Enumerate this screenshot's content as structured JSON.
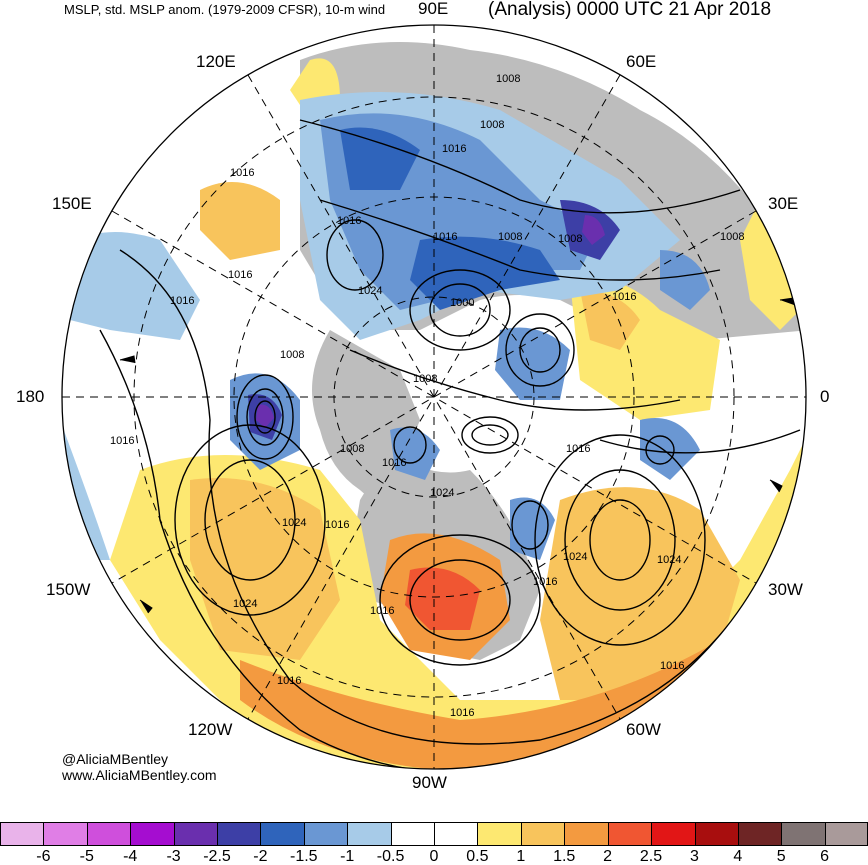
{
  "title": {
    "left": "MSLP, std. MSLP anom. (1979-2009 CFSR), 10-m wind",
    "right": "(Analysis) 0000 UTC 21 Apr 2018"
  },
  "longitude_labels": {
    "lon_90e": "90E",
    "lon_60e": "60E",
    "lon_120e": "120E",
    "lon_30e": "30E",
    "lon_150e": "150E",
    "lon_180": "180",
    "lon_0": "0",
    "lon_150w": "150W",
    "lon_30w": "30W",
    "lon_120w": "120W",
    "lon_60w": "60W",
    "lon_90w": "90W"
  },
  "isobar_labels": [
    "1008",
    "1008",
    "1016",
    "1016",
    "1008",
    "1008",
    "1016",
    "1016",
    "1024",
    "1008",
    "1016",
    "1016",
    "1000",
    "1008",
    "1016",
    "1008",
    "1016",
    "1008",
    "1016",
    "1024",
    "1024",
    "1016",
    "1016",
    "1024",
    "1024",
    "1016",
    "1016",
    "1024",
    "1016",
    "1016",
    "1016"
  ],
  "credits": {
    "handle": "@AliciaMBentley",
    "website": "www.AliciaMBentley.com"
  },
  "colorbar": {
    "colors": [
      "#e9b3ea",
      "#e07ee6",
      "#cf4fdc",
      "#a50dd0",
      "#6a2fae",
      "#3d3fa6",
      "#2f64bb",
      "#6a97d3",
      "#a7cbe8",
      "#ffffff",
      "#ffffff",
      "#fde871",
      "#f8c45c",
      "#f39a40",
      "#f05632",
      "#e21616",
      "#a80e0e",
      "#6e2525",
      "#7f7373",
      "#a99a9a"
    ],
    "tick_labels": [
      "-6",
      "-5",
      "-4",
      "-3",
      "-2.5",
      "-2",
      "-1.5",
      "-1",
      "-0.5",
      "0",
      "0.5",
      "1",
      "1.5",
      "2",
      "2.5",
      "3",
      "4",
      "5",
      "6"
    ]
  },
  "map_colors": {
    "land_gray": "#bdbdbd",
    "warm_light": "#fde871",
    "warm_mid": "#f8c45c",
    "warm_orange": "#f39a40",
    "warm_red": "#f05632",
    "cool_light": "#a7cbe8",
    "cool_mid": "#6a97d3",
    "cool_dark": "#2f64bb",
    "cool_navy": "#3d3fa6",
    "cool_purple": "#6a2fae"
  }
}
